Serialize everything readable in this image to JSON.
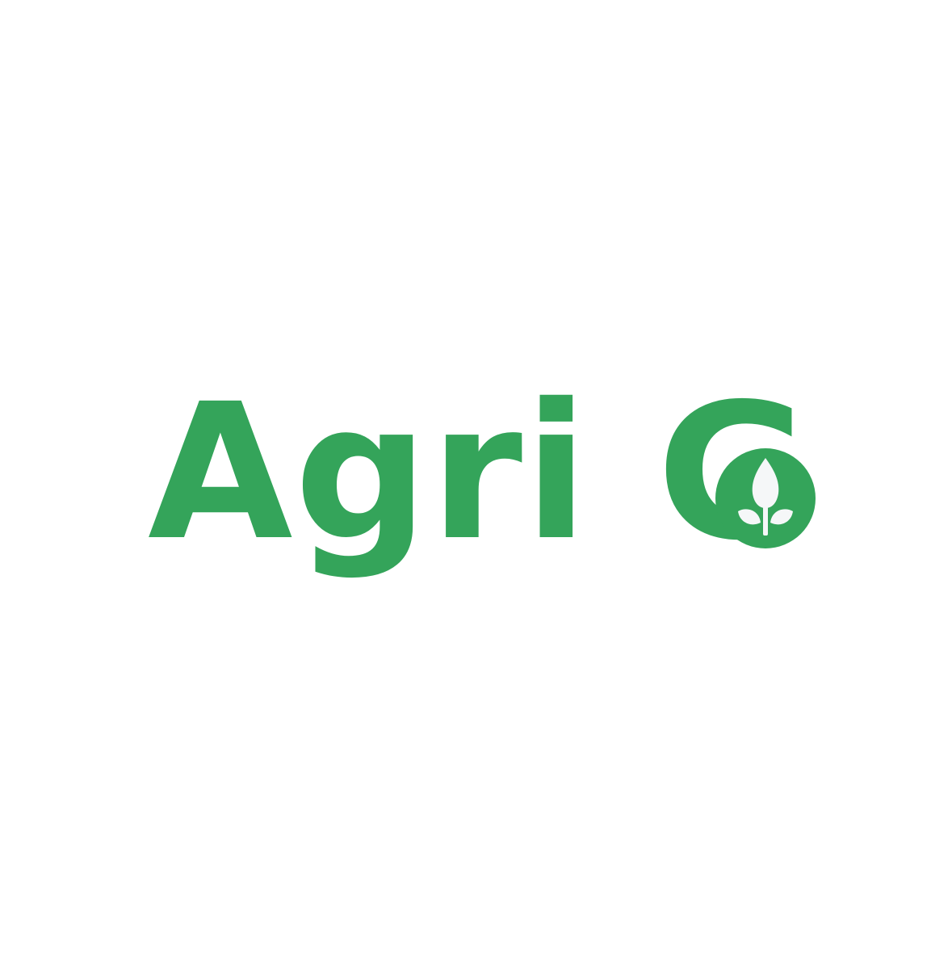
{
  "brand": {
    "part1": "Agri G",
    "icon": "leaf-sprout-icon",
    "accent_color": "#34a45a",
    "icon_fill_color": "#f5f7f8",
    "background_color": "#ffffff"
  }
}
